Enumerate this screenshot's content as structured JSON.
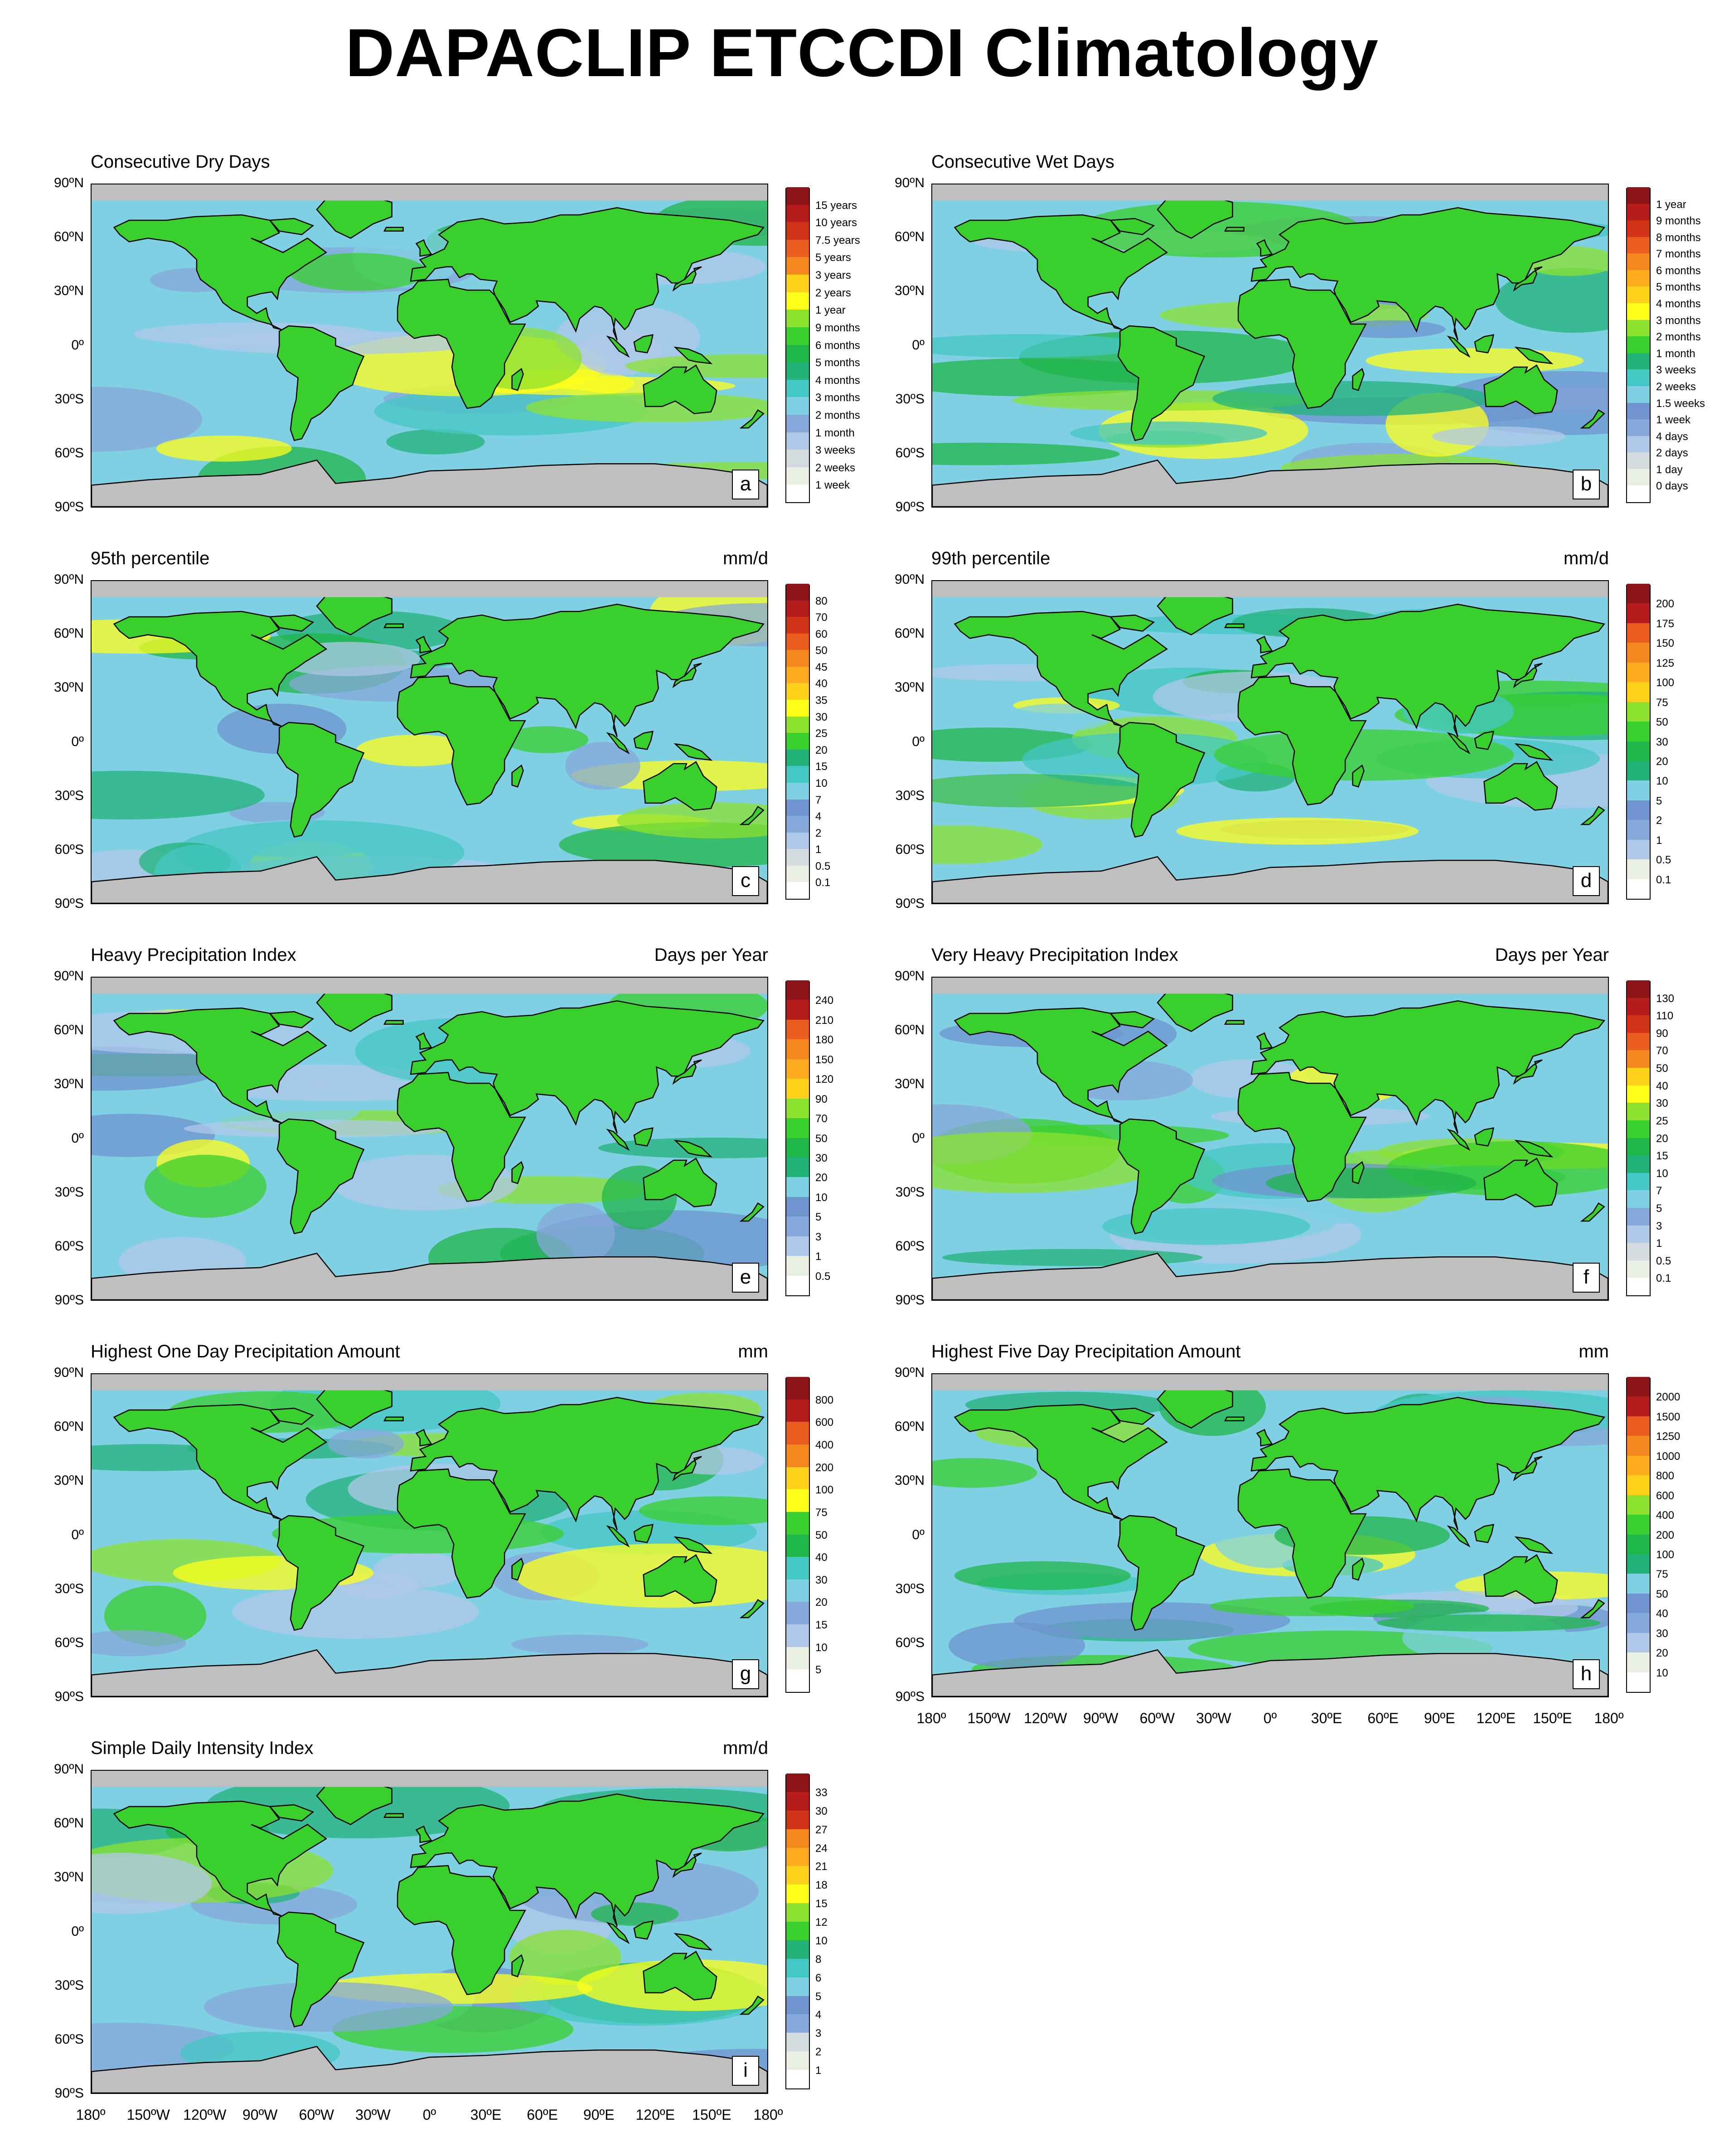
{
  "figure": {
    "title": "DAPACLIP ETCCDI Climatology"
  },
  "lat_labels": [
    "90ºN",
    "60ºN",
    "30ºN",
    "0º",
    "30ºS",
    "60ºS",
    "90ºS"
  ],
  "lon_labels": [
    "180º",
    "150ºW",
    "120ºW",
    "90ºW",
    "60ºW",
    "30ºW",
    "0º",
    "30ºE",
    "60ºE",
    "90ºE",
    "120ºE",
    "150ºE",
    "180º"
  ],
  "panels": [
    {
      "id": "a",
      "title": "Consecutive Dry Days",
      "units": "",
      "letter": "a",
      "colors": [
        "#ffffff",
        "#e9efe1",
        "#d4dbde",
        "#b0c8e8",
        "#86a8da",
        "#6f94cf",
        "#7fd0e3",
        "#45c7c4",
        "#22b37a",
        "#1fb64a",
        "#39cf2d",
        "#8ce22f",
        "#ffff1a",
        "#ffd11a",
        "#ffab1f",
        "#f5871f",
        "#ea5d1e",
        "#d33418",
        "#b61d1a",
        "#8d1519"
      ],
      "labels": [
        "1 week",
        "2 weeks",
        "3 weeks",
        "1 month",
        "2 months",
        "3 months",
        "4 months",
        "5 months",
        "6 months",
        "9 months",
        "1 year",
        "2 years",
        "3 years",
        "5 years",
        "7.5 years",
        "10 years",
        "15 years"
      ]
    },
    {
      "id": "b",
      "title": "Consecutive Wet Days",
      "units": "",
      "letter": "b",
      "colors": [
        "#ffffff",
        "#e9efe1",
        "#d4dbde",
        "#b0c8e8",
        "#86a8da",
        "#6f94cf",
        "#7fd0e3",
        "#45c7c4",
        "#22b37a",
        "#1fb64a",
        "#39cf2d",
        "#8ce22f",
        "#ffff1a",
        "#ffd11a",
        "#ffab1f",
        "#f5871f",
        "#ea5d1e",
        "#d33418",
        "#b61d1a",
        "#8d1519"
      ],
      "labels": [
        "0 days",
        "1 day",
        "2 days",
        "4 days",
        "1 week",
        "1.5 weeks",
        "2 weeks",
        "3 weeks",
        "1 month",
        "2 months",
        "3 months",
        "4 months",
        "5 months",
        "6 months",
        "7 months",
        "8 months",
        "9 months",
        "1 year"
      ]
    },
    {
      "id": "c",
      "title": "95th percentile",
      "units": "mm/d",
      "letter": "c",
      "colors": [
        "#ffffff",
        "#e9efe1",
        "#d4dbde",
        "#b0c8e8",
        "#86a8da",
        "#6f94cf",
        "#7fd0e3",
        "#45c7c4",
        "#22b37a",
        "#1fb64a",
        "#39cf2d",
        "#8ce22f",
        "#ffff1a",
        "#ffd11a",
        "#ffab1f",
        "#f5871f",
        "#ea5d1e",
        "#d33418",
        "#b61d1a",
        "#8d1519"
      ],
      "labels": [
        "0.1",
        "0.5",
        "1",
        "2",
        "4",
        "7",
        "10",
        "15",
        "20",
        "25",
        "30",
        "35",
        "40",
        "45",
        "50",
        "60",
        "70",
        "80"
      ]
    },
    {
      "id": "d",
      "title": "99th percentile",
      "units": "mm/d",
      "letter": "d",
      "colors": [
        "#ffffff",
        "#e9efe1",
        "#d4dbde",
        "#b0c8e8",
        "#86a8da",
        "#6f94cf",
        "#7fd0e3",
        "#45c7c4",
        "#22b37a",
        "#1fb64a",
        "#39cf2d",
        "#8ce22f",
        "#ffff1a",
        "#ffd11a",
        "#ffab1f",
        "#f5871f",
        "#ea5d1e",
        "#d33418",
        "#b61d1a",
        "#8d1519"
      ],
      "labels": [
        "0.1",
        "0.5",
        "1",
        "2",
        "5",
        "10",
        "20",
        "30",
        "50",
        "75",
        "100",
        "125",
        "150",
        "175",
        "200"
      ]
    },
    {
      "id": "e",
      "title": "Heavy Precipitation Index",
      "units": "Days per Year",
      "letter": "e",
      "colors": [
        "#ffffff",
        "#e9efe1",
        "#d4dbde",
        "#b0c8e8",
        "#86a8da",
        "#6f94cf",
        "#7fd0e3",
        "#45c7c4",
        "#22b37a",
        "#1fb64a",
        "#39cf2d",
        "#8ce22f",
        "#ffff1a",
        "#ffd11a",
        "#ffab1f",
        "#f5871f",
        "#ea5d1e",
        "#d33418",
        "#b61d1a",
        "#8d1519"
      ],
      "labels": [
        "0.5",
        "1",
        "3",
        "5",
        "10",
        "20",
        "30",
        "50",
        "70",
        "90",
        "120",
        "150",
        "180",
        "210",
        "240"
      ]
    },
    {
      "id": "f",
      "title": "Very Heavy Precipitation Index",
      "units": "Days per Year",
      "letter": "f",
      "colors": [
        "#ffffff",
        "#e9efe1",
        "#d4dbde",
        "#b0c8e8",
        "#86a8da",
        "#6f94cf",
        "#7fd0e3",
        "#45c7c4",
        "#22b37a",
        "#1fb64a",
        "#39cf2d",
        "#8ce22f",
        "#ffff1a",
        "#ffd11a",
        "#ffab1f",
        "#f5871f",
        "#ea5d1e",
        "#d33418",
        "#b61d1a",
        "#8d1519"
      ],
      "labels": [
        "0.1",
        "0.5",
        "1",
        "3",
        "5",
        "7",
        "10",
        "15",
        "20",
        "25",
        "30",
        "40",
        "50",
        "70",
        "90",
        "110",
        "130"
      ]
    },
    {
      "id": "g",
      "title": "Highest One Day Precipitation Amount",
      "units": "mm",
      "letter": "g",
      "colors": [
        "#ffffff",
        "#e9efe1",
        "#d4dbde",
        "#b0c8e8",
        "#86a8da",
        "#6f94cf",
        "#7fd0e3",
        "#45c7c4",
        "#22b37a",
        "#1fb64a",
        "#39cf2d",
        "#8ce22f",
        "#ffff1a",
        "#ffd11a",
        "#ffab1f",
        "#f5871f",
        "#ea5d1e",
        "#d33418",
        "#b61d1a",
        "#8d1519"
      ],
      "labels": [
        "5",
        "10",
        "15",
        "20",
        "30",
        "40",
        "50",
        "75",
        "100",
        "200",
        "400",
        "600",
        "800"
      ]
    },
    {
      "id": "h",
      "title": "Highest Five Day Precipitation Amount",
      "units": "mm",
      "letter": "h",
      "colors": [
        "#ffffff",
        "#e9efe1",
        "#d4dbde",
        "#b0c8e8",
        "#86a8da",
        "#6f94cf",
        "#7fd0e3",
        "#45c7c4",
        "#22b37a",
        "#1fb64a",
        "#39cf2d",
        "#8ce22f",
        "#ffff1a",
        "#ffd11a",
        "#ffab1f",
        "#f5871f",
        "#ea5d1e",
        "#d33418",
        "#b61d1a",
        "#8d1519"
      ],
      "labels": [
        "10",
        "20",
        "30",
        "40",
        "50",
        "75",
        "100",
        "200",
        "400",
        "600",
        "800",
        "1000",
        "1250",
        "1500",
        "2000"
      ]
    },
    {
      "id": "i",
      "title": "Simple Daily Intensity Index",
      "units": "mm/d",
      "letter": "i",
      "colors": [
        "#ffffff",
        "#e9efe1",
        "#d4dbde",
        "#b0c8e8",
        "#86a8da",
        "#6f94cf",
        "#7fd0e3",
        "#45c7c4",
        "#22b37a",
        "#1fb64a",
        "#39cf2d",
        "#8ce22f",
        "#ffff1a",
        "#ffd11a",
        "#ffab1f",
        "#f5871f",
        "#ea5d1e",
        "#d33418",
        "#b61d1a",
        "#8d1519"
      ],
      "labels": [
        "1",
        "2",
        "3",
        "4",
        "5",
        "6",
        "8",
        "10",
        "12",
        "15",
        "18",
        "21",
        "24",
        "27",
        "30",
        "33"
      ]
    }
  ],
  "style": {
    "ocean_base": "#7fd0e3",
    "land_base": "#39cf2d",
    "polar": "#bfbfbf",
    "coast": "#000000"
  }
}
